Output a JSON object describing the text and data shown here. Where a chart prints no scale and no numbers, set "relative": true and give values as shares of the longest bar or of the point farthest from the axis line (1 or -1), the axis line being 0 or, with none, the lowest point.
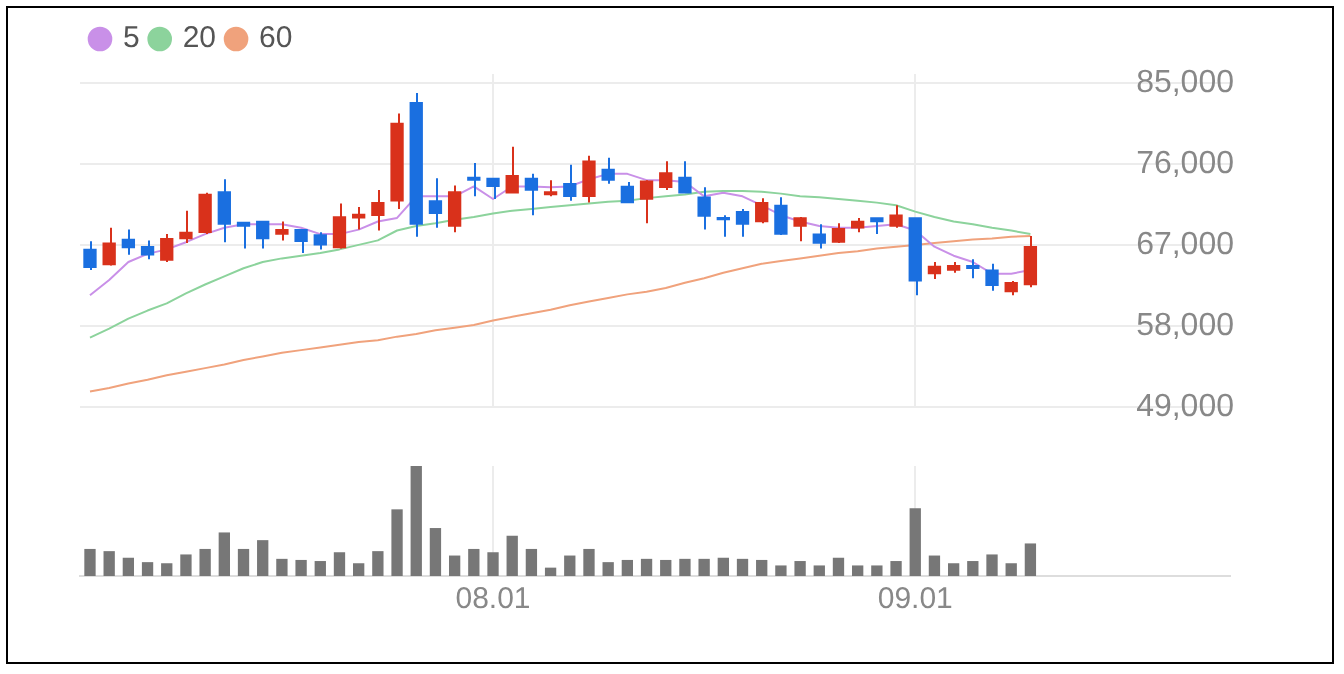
{
  "chart_data": [
    {
      "type": "candlestick",
      "categories": [
        null,
        null,
        null,
        null,
        null,
        null,
        null,
        null,
        null,
        null,
        null,
        null,
        null,
        null,
        null,
        null,
        null,
        null,
        null,
        null,
        null,
        "08.01",
        null,
        null,
        null,
        null,
        null,
        null,
        null,
        null,
        null,
        null,
        null,
        null,
        null,
        null,
        null,
        null,
        null,
        null,
        null,
        null,
        null,
        "09.01",
        null,
        null,
        null,
        null,
        null,
        null
      ],
      "ohlc": [
        [
          66500,
          67400,
          64200,
          64500
        ],
        [
          64800,
          68900,
          64700,
          67200
        ],
        [
          67600,
          68700,
          65900,
          66700
        ],
        [
          66800,
          67500,
          65400,
          65900
        ],
        [
          65300,
          68200,
          65100,
          67700
        ],
        [
          67700,
          70800,
          67200,
          68400
        ],
        [
          68400,
          72800,
          68200,
          72600
        ],
        [
          72900,
          74300,
          67300,
          69300
        ],
        [
          69500,
          69500,
          66600,
          69100
        ],
        [
          69600,
          69600,
          66600,
          67700
        ],
        [
          68200,
          69600,
          67500,
          68700
        ],
        [
          68700,
          68700,
          66100,
          67400
        ],
        [
          68100,
          68400,
          66500,
          67000
        ],
        [
          66700,
          71600,
          66600,
          70100
        ],
        [
          70000,
          71200,
          68700,
          70400
        ],
        [
          70300,
          73100,
          68600,
          71700
        ],
        [
          71900,
          81600,
          71000,
          80500
        ],
        [
          82800,
          83900,
          67900,
          69300
        ],
        [
          71900,
          74400,
          68900,
          70500
        ],
        [
          69100,
          73600,
          68400,
          72900
        ],
        [
          74500,
          76100,
          72400,
          74200
        ],
        [
          74400,
          74400,
          72100,
          73500
        ],
        [
          72800,
          77900,
          72800,
          74700
        ],
        [
          74400,
          74900,
          70300,
          73100
        ],
        [
          72600,
          74200,
          72400,
          72900
        ],
        [
          73800,
          75900,
          71900,
          72400
        ],
        [
          72400,
          76900,
          71700,
          76300
        ],
        [
          75400,
          76700,
          73800,
          74200
        ],
        [
          73500,
          74000,
          71700,
          71700
        ],
        [
          72100,
          74200,
          69400,
          74100
        ],
        [
          73400,
          76300,
          73100,
          75000
        ],
        [
          74500,
          76300,
          72800,
          72800
        ],
        [
          72300,
          73400,
          68700,
          70200
        ],
        [
          70000,
          70300,
          67900,
          69800
        ],
        [
          70700,
          71000,
          67900,
          69300
        ],
        [
          69600,
          72200,
          69400,
          71700
        ],
        [
          71400,
          72300,
          68100,
          68200
        ],
        [
          69100,
          70100,
          67400,
          70000
        ],
        [
          68200,
          69300,
          66600,
          67200
        ],
        [
          67300,
          69400,
          67200,
          68800
        ],
        [
          68900,
          70000,
          68400,
          69600
        ],
        [
          70000,
          70000,
          68200,
          69600
        ],
        [
          69100,
          71400,
          68900,
          70300
        ],
        [
          70000,
          70000,
          61400,
          63000
        ],
        [
          63800,
          65100,
          63200,
          64600
        ],
        [
          64200,
          65100,
          63900,
          64700
        ],
        [
          64700,
          65400,
          63300,
          64400
        ],
        [
          64200,
          64900,
          61900,
          62500
        ],
        [
          61800,
          63000,
          61400,
          62800
        ],
        [
          62600,
          68000,
          62300,
          66800
        ]
      ],
      "colors": [
        "#1a6fe0",
        "#d9311b",
        "#1a6fe0",
        "#1a6fe0",
        "#d9311b",
        "#d9311b",
        "#d9311b",
        "#1a6fe0",
        "#1a6fe0",
        "#1a6fe0",
        "#d9311b",
        "#1a6fe0",
        "#1a6fe0",
        "#d9311b",
        "#d9311b",
        "#d9311b",
        "#d9311b",
        "#1a6fe0",
        "#1a6fe0",
        "#d9311b",
        "#1a6fe0",
        "#1a6fe0",
        "#d9311b",
        "#1a6fe0",
        "#d9311b",
        "#1a6fe0",
        "#d9311b",
        "#1a6fe0",
        "#1a6fe0",
        "#d9311b",
        "#d9311b",
        "#1a6fe0",
        "#1a6fe0",
        "#1a6fe0",
        "#1a6fe0",
        "#d9311b",
        "#1a6fe0",
        "#d9311b",
        "#1a6fe0",
        "#d9311b",
        "#d9311b",
        "#1a6fe0",
        "#d9311b",
        "#1a6fe0",
        "#d9311b",
        "#d9311b",
        "#1a6fe0",
        "#1a6fe0",
        "#d9311b",
        "#d9311b"
      ],
      "series": [
        {
          "name": "5",
          "type": "line",
          "color": "#c990e8",
          "values": [
            61400,
            63100,
            65100,
            66000,
            66500,
            67300,
            68200,
            68900,
            69300,
            69300,
            69300,
            68900,
            68200,
            68200,
            68700,
            69600,
            70000,
            72400,
            72400,
            72400,
            73500,
            72100,
            73500,
            73500,
            73400,
            73500,
            74300,
            74900,
            74900,
            74200,
            74200,
            74000,
            72400,
            72800,
            72400,
            71400,
            70300,
            69600,
            69100,
            68900,
            68900,
            69100,
            69300,
            68600,
            66800,
            65800,
            65100,
            63800,
            63800,
            64200
          ]
        },
        {
          "name": "20",
          "type": "line",
          "color": "#8cd39c",
          "values": [
            56700,
            57700,
            58800,
            59700,
            60500,
            61600,
            62600,
            63500,
            64400,
            65100,
            65500,
            65800,
            66100,
            66500,
            67000,
            67500,
            68600,
            69100,
            69400,
            69800,
            70100,
            70500,
            70800,
            71000,
            71200,
            71400,
            71600,
            71800,
            71900,
            72200,
            72400,
            72600,
            72900,
            73000,
            73000,
            72900,
            72700,
            72400,
            72300,
            72100,
            71900,
            71700,
            71400,
            70700,
            70100,
            69600,
            69300,
            68900,
            68600,
            68200
          ]
        },
        {
          "name": "60",
          "type": "line",
          "color": "#f0a27c",
          "values": [
            50700,
            51100,
            51600,
            52000,
            52500,
            52900,
            53300,
            53700,
            54200,
            54600,
            55000,
            55300,
            55600,
            55900,
            56200,
            56400,
            56800,
            57100,
            57500,
            57800,
            58100,
            58600,
            59000,
            59400,
            59800,
            60300,
            60700,
            61100,
            61500,
            61800,
            62200,
            62800,
            63300,
            63900,
            64400,
            64900,
            65200,
            65500,
            65800,
            66100,
            66300,
            66600,
            66800,
            67000,
            67200,
            67400,
            67600,
            67700,
            67900,
            68000
          ]
        }
      ],
      "ylim": [
        49000,
        86000
      ],
      "yticks": [
        {
          "value": 49000,
          "label": "49,000"
        },
        {
          "value": 58000,
          "label": "58,000"
        },
        {
          "value": 67000,
          "label": "67,000"
        },
        {
          "value": 76000,
          "label": "76,000"
        },
        {
          "value": 85000,
          "label": "85,000"
        }
      ],
      "grid": true,
      "legend": "top left",
      "marker": "none",
      "tick_labels": "y"
    },
    {
      "type": "bar",
      "categories": [
        null,
        null,
        null,
        null,
        null,
        null,
        null,
        null,
        null,
        null,
        null,
        null,
        null,
        null,
        null,
        null,
        null,
        null,
        null,
        null,
        null,
        "08.01",
        null,
        null,
        null,
        null,
        null,
        null,
        null,
        null,
        null,
        null,
        null,
        null,
        null,
        null,
        null,
        null,
        null,
        null,
        null,
        null,
        null,
        "09.01",
        null,
        null,
        null,
        null,
        null,
        null
      ],
      "values": [
        0.24,
        0.22,
        0.16,
        0.12,
        0.11,
        0.19,
        0.24,
        0.39,
        0.24,
        0.32,
        0.15,
        0.14,
        0.13,
        0.21,
        0.11,
        0.22,
        0.6,
        1,
        0.43,
        0.18,
        0.24,
        0.21,
        0.36,
        0.24,
        0.07,
        0.18,
        0.24,
        0.12,
        0.14,
        0.15,
        0.14,
        0.15,
        0.15,
        0.16,
        0.15,
        0.14,
        0.09,
        0.13,
        0.09,
        0.16,
        0.09,
        0.09,
        0.13,
        0.61,
        0.18,
        0.11,
        0.13,
        0.19,
        0.11,
        0.29
      ],
      "color": "#777777",
      "relative": true,
      "grid": "x",
      "tick_labels": "x"
    }
  ]
}
